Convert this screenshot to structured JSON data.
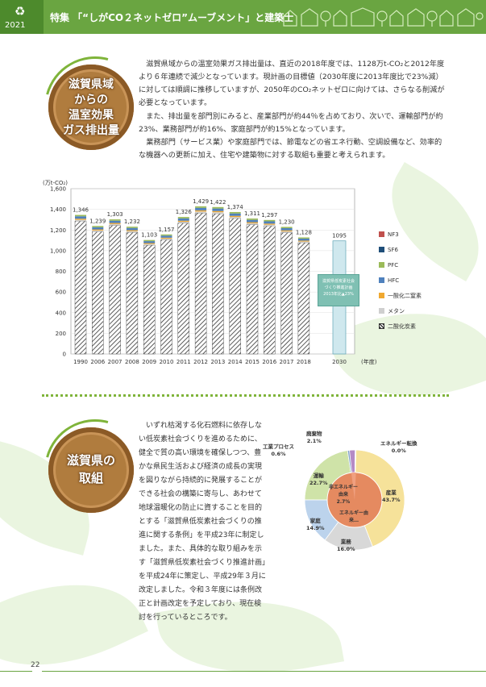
{
  "header": {
    "logo": "♻",
    "year": "2021",
    "title": "特集 「“しがCO２ネットゼロ”ムーブメント」と建築士"
  },
  "section1": {
    "badge": [
      "滋賀県域",
      "からの",
      "温室効果",
      "ガス排出量"
    ],
    "paragraphs": [
      "滋賀県域からの温室効果ガス排出量は、直近の2018年度では、1128万t-CO₂と2012年度より６年連続で減少となっています。現計画の目標値（2030年度に2013年度比で23%減）に対しては順調に推移していますが、2050年のCO₂ネットゼロに向けては、さらなる削減が必要となっています。",
      "また、排出量を部門別にみると、産業部門が約44％を占めており、次いで、運輸部門が約23%、業務部門が約16%、家庭部門が約15%となっています。",
      "業務部門（サービス業）や家庭部門では、節電などの省エネ行動、空調設備など、効率的な機器への更新に加え、住宅や建築物に対する取組も重要と考えられます。"
    ]
  },
  "chart_data": {
    "type": "bar",
    "unit_label": "(万t-CO₂)",
    "xlabel": "(年度)",
    "ylim": [
      0,
      1600
    ],
    "yticks": [
      "1,600",
      "1,400",
      "1,200",
      "1,000",
      "800",
      "600",
      "400",
      "200",
      "0"
    ],
    "categories": [
      "1990",
      "2006",
      "2007",
      "2008",
      "2009",
      "2010",
      "2011",
      "2012",
      "2013",
      "2014",
      "2015",
      "2016",
      "2017",
      "2018",
      "2030"
    ],
    "totals": [
      1346,
      1239,
      1303,
      1232,
      1103,
      1157,
      1326,
      1429,
      1422,
      1374,
      1311,
      1297,
      1230,
      1128,
      1095
    ],
    "value_labels": [
      "1,346",
      "1,239",
      "1,303",
      "1,232",
      "1,103",
      "1,157",
      "1,326",
      "1,429",
      "1,422",
      "1,374",
      "1,311",
      "1,297",
      "1,230",
      "1,128",
      "1095"
    ],
    "legend": [
      "NF3",
      "SF6",
      "PFC",
      "HFC",
      "一酸化二窒素",
      "メタン",
      "二酸化炭素"
    ],
    "legend_colors": [
      "#c0504d",
      "#1f4e79",
      "#9bbb59",
      "#4f81bd",
      "#f0a830",
      "#cfcfcf",
      "#ffffff"
    ],
    "target_text": [
      "滋賀県低炭素社会",
      "づくり推進計画",
      "2013年比▲23%"
    ]
  },
  "section2": {
    "badge": [
      "滋賀県の",
      "取組"
    ],
    "paragraphs": [
      "いずれ枯渇する化石燃料に依存しない低炭素社会づくりを進めるために、健全で質の高い環境を確保しつつ、豊かな県民生活および経済の成長の実現を図りながら持続的に発展することができる社会の構築に寄与し、あわせて地球温暖化の防止に資することを目的とする「滋賀県低炭素社会づくりの推進に関する条例」を平成23年に制定しました。また、具体的な取り組みを示す「滋賀県低炭素社会づくり推進計画」を平成24年に策定し、平成29年３月に改定しました。令和３年度には条例改正と計画改定を予定しており、現在検討を行っているところです。"
    ]
  },
  "pie": {
    "slices": [
      {
        "name": "産業",
        "value": 43.7,
        "label": "産業\n43.7%",
        "color": "#f6e29a"
      },
      {
        "name": "業務",
        "value": 16.0,
        "label": "業務\n16.0%",
        "color": "#d8d8d8"
      },
      {
        "name": "家庭",
        "value": 14.9,
        "label": "家庭\n14.9%",
        "color": "#bcd3ec"
      },
      {
        "name": "運輸",
        "value": 22.7,
        "label": "運輸\n22.7%",
        "color": "#cfe3a8"
      },
      {
        "name": "工業プロセス",
        "value": 0.6,
        "label": "工業プロセス\n0.6%",
        "color": "#7d9fc8"
      },
      {
        "name": "廃棄物",
        "value": 2.1,
        "label": "廃棄物\n2.1%",
        "color": "#b58ac5"
      },
      {
        "name": "エネルギー転換",
        "value": 0.0,
        "label": "エネルギー転換\n0.0%",
        "color": "#e08080"
      }
    ],
    "inner": [
      {
        "label": "非エネルギー由来\n2.7%",
        "color": "#f0a080"
      },
      {
        "label": "エネルギー由来…",
        "color": "#e58a60"
      }
    ]
  },
  "footer": {
    "page_number": "22"
  }
}
